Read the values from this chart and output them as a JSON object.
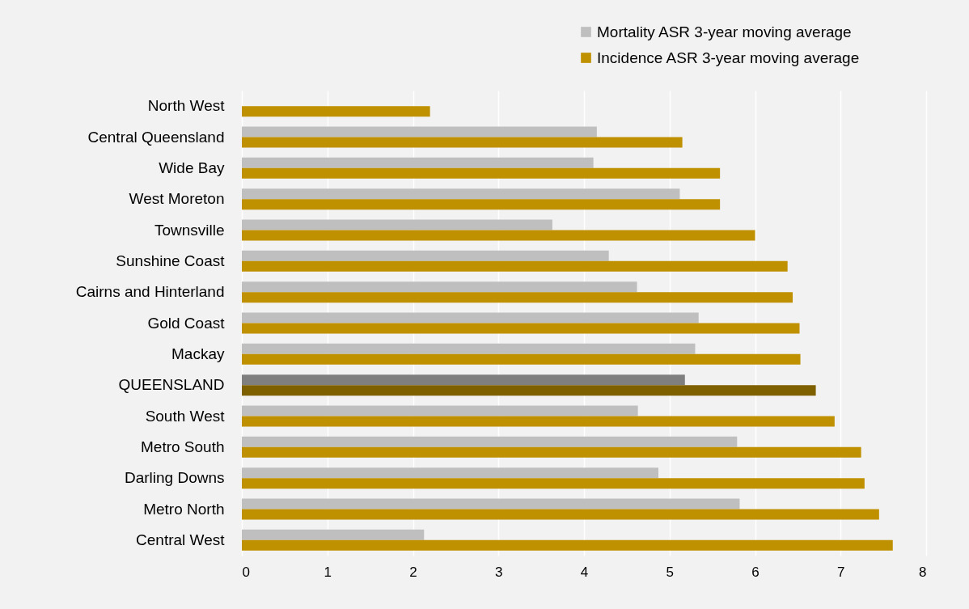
{
  "chart_data": {
    "type": "bar",
    "orientation": "horizontal",
    "categories": [
      "North West",
      "Central Queensland",
      "Wide Bay",
      "West Moreton",
      "Townsville",
      "Sunshine Coast",
      "Cairns and Hinterland",
      "Gold Coast",
      "Mackay",
      "QUEENSLAND",
      "South West",
      "Metro South",
      "Darling Downs",
      "Metro North",
      "Central West"
    ],
    "series": [
      {
        "name": "Mortality ASR 3-year moving average",
        "color": "#bfbfbf",
        "colors": [
          null,
          "#bfbfbf",
          "#bfbfbf",
          "#bfbfbf",
          "#bfbfbf",
          "#bfbfbf",
          "#bfbfbf",
          "#bfbfbf",
          "#bfbfbf",
          "#7f7f7f",
          "#bfbfbf",
          "#bfbfbf",
          "#bfbfbf",
          "#bfbfbf",
          "#bfbfbf"
        ],
        "values": [
          null,
          4.15,
          4.11,
          5.12,
          3.63,
          4.29,
          4.62,
          5.34,
          5.3,
          5.18,
          4.63,
          5.79,
          4.87,
          5.82,
          2.13
        ]
      },
      {
        "name": "Incidence ASR 3-year moving average",
        "color": "#bf9000",
        "colors": [
          "#bf9000",
          "#bf9000",
          "#bf9000",
          "#bf9000",
          "#bf9000",
          "#bf9000",
          "#bf9000",
          "#bf9000",
          "#bf9000",
          "#7f6000",
          "#bf9000",
          "#bf9000",
          "#bf9000",
          "#bf9000",
          "#bf9000"
        ],
        "values": [
          2.2,
          5.15,
          5.59,
          5.59,
          6.0,
          6.38,
          6.44,
          6.52,
          6.53,
          6.71,
          6.93,
          7.24,
          7.28,
          7.45,
          7.61
        ]
      }
    ],
    "xlim": [
      0,
      8
    ],
    "xticks": [
      0,
      1,
      2,
      3,
      4,
      5,
      6,
      7,
      8
    ],
    "grid": "x",
    "legend": "top right"
  }
}
